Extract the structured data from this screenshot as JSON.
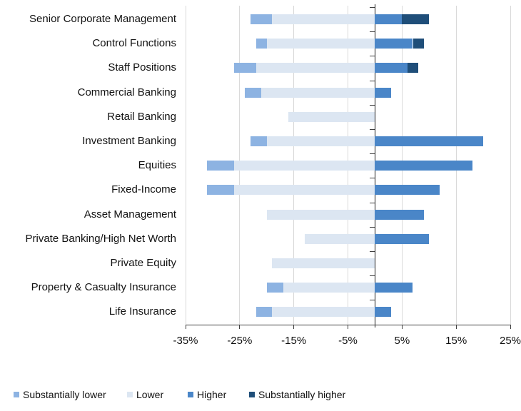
{
  "chart_data": {
    "type": "bar",
    "orientation": "horizontal",
    "stacked": true,
    "diverging": true,
    "title": "",
    "xlabel": "",
    "ylabel": "",
    "xlim": [
      -35,
      25
    ],
    "grid": "vertical gridlines at each 10% tick, light gray; bold black line at 0",
    "legend_position": "bottom-left",
    "x_ticks": [
      {
        "value": -35,
        "label": "-35%"
      },
      {
        "value": -25,
        "label": "-25%"
      },
      {
        "value": -15,
        "label": "-15%"
      },
      {
        "value": -5,
        "label": "-5%"
      },
      {
        "value": 5,
        "label": "5%"
      },
      {
        "value": 15,
        "label": "15%"
      },
      {
        "value": 25,
        "label": "25%"
      }
    ],
    "categories": [
      "Senior Corporate Management",
      "Control Functions",
      "Staff Positions",
      "Commercial Banking",
      "Retail Banking",
      "Investment Banking",
      "Equities",
      "Fixed-Income",
      "Asset Management",
      "Private Banking/High Net Worth",
      "Private Equity",
      "Property & Casualty Insurance",
      "Life Insurance"
    ],
    "series": [
      {
        "name": "Substantially lower",
        "color": "#8db3e2",
        "side": "negative",
        "stack_position": "outer",
        "values": [
          4,
          2,
          4,
          3,
          0,
          3,
          5,
          5,
          0,
          0,
          0,
          3,
          3
        ]
      },
      {
        "name": "Lower",
        "color": "#dce6f2",
        "side": "negative",
        "stack_position": "inner",
        "values": [
          19,
          20,
          22,
          21,
          16,
          20,
          26,
          26,
          20,
          13,
          19,
          17,
          19
        ]
      },
      {
        "name": "Higher",
        "color": "#4a86c8",
        "side": "positive",
        "stack_position": "inner",
        "values": [
          5,
          7,
          6,
          3,
          0,
          20,
          18,
          12,
          9,
          10,
          0,
          7,
          3
        ]
      },
      {
        "name": "Substantially higher",
        "color": "#1f4e79",
        "side": "positive",
        "stack_position": "outer",
        "values": [
          5,
          2,
          2,
          0,
          0,
          0,
          0,
          0,
          0,
          0,
          0,
          0,
          0
        ]
      }
    ]
  }
}
